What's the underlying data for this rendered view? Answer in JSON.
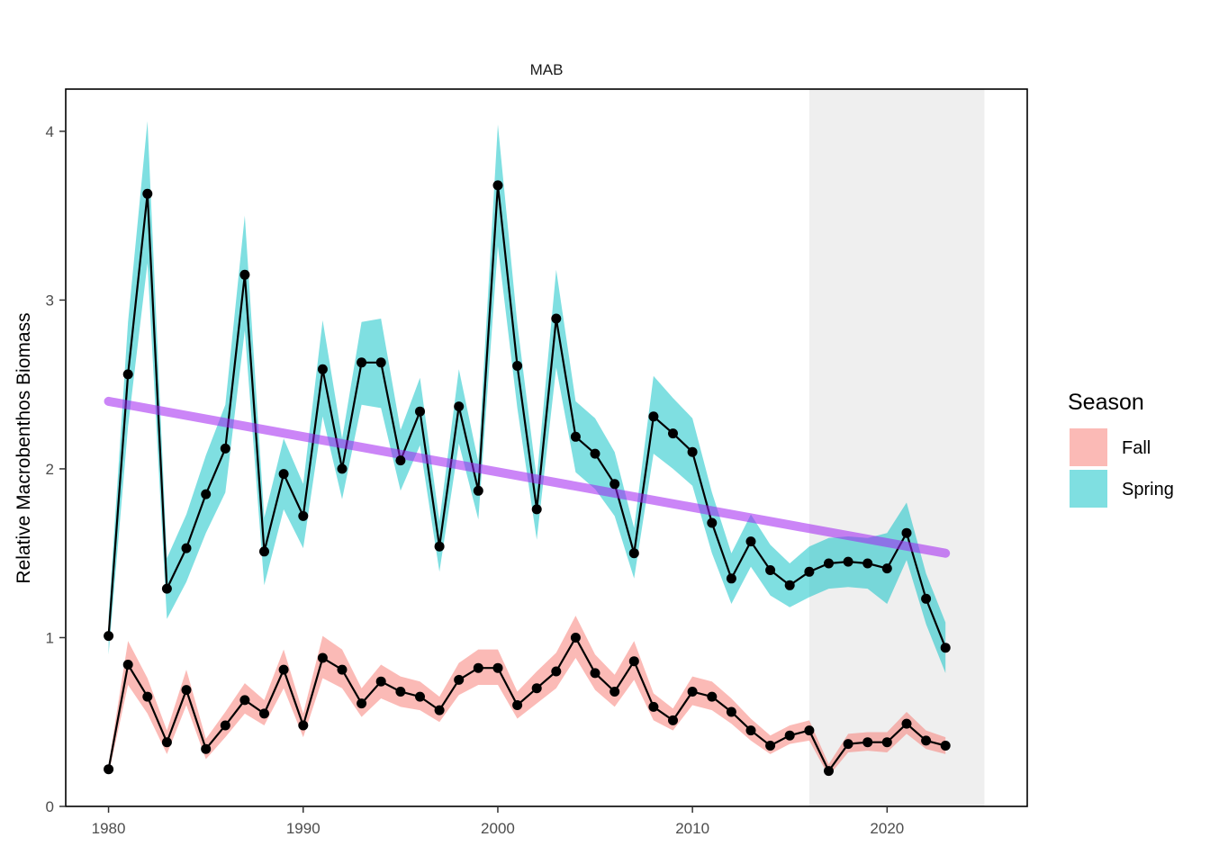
{
  "chart_data": {
    "type": "line",
    "panel_title": "MAB",
    "ylabel": "Relative Macrobenthos Biomass",
    "xlabel": "",
    "xlim": [
      1977.8,
      2027.2
    ],
    "ylim": [
      0,
      4.25
    ],
    "x_ticks": [
      1980,
      1990,
      2000,
      2010,
      2020
    ],
    "y_ticks": [
      0,
      1,
      2,
      3,
      4
    ],
    "highlight_region": {
      "x_start": 2016,
      "x_end": 2025,
      "color": "#efefef"
    },
    "legend": {
      "title": "Season",
      "position": "right",
      "entries": [
        "Fall",
        "Spring"
      ]
    },
    "colors": {
      "Fall": "#f8766d",
      "Spring": "#00bfc4",
      "trend": "#a020f0",
      "line": "#000000"
    },
    "grid": false,
    "x": [
      1980,
      1981,
      1982,
      1983,
      1984,
      1985,
      1986,
      1987,
      1988,
      1989,
      1990,
      1991,
      1992,
      1993,
      1994,
      1995,
      1996,
      1997,
      1998,
      1999,
      2000,
      2001,
      2002,
      2003,
      2004,
      2005,
      2006,
      2007,
      2008,
      2009,
      2010,
      2011,
      2012,
      2013,
      2014,
      2015,
      2016,
      2017,
      2018,
      2019,
      2020,
      2021,
      2022,
      2023
    ],
    "series": [
      {
        "name": "Spring",
        "values": [
          1.01,
          2.56,
          3.63,
          1.29,
          1.53,
          1.85,
          2.12,
          3.15,
          1.51,
          1.97,
          1.72,
          2.59,
          2.0,
          2.63,
          2.63,
          2.05,
          2.34,
          1.54,
          2.37,
          1.87,
          3.68,
          2.61,
          1.76,
          2.89,
          2.19,
          2.09,
          1.91,
          1.5,
          2.31,
          2.21,
          2.1,
          1.68,
          1.35,
          1.57,
          1.4,
          1.31,
          1.39,
          1.44,
          1.45,
          1.44,
          1.41,
          1.62,
          1.23,
          0.94
        ],
        "lower": [
          0.9,
          2.25,
          3.22,
          1.11,
          1.33,
          1.62,
          1.86,
          2.82,
          1.31,
          1.76,
          1.53,
          2.31,
          1.82,
          2.38,
          2.36,
          1.87,
          2.14,
          1.39,
          2.15,
          1.7,
          3.32,
          2.36,
          1.58,
          2.6,
          1.98,
          1.88,
          1.72,
          1.35,
          2.09,
          2.0,
          1.9,
          1.5,
          1.2,
          1.42,
          1.25,
          1.18,
          1.24,
          1.29,
          1.3,
          1.29,
          1.2,
          1.46,
          1.08,
          0.79
        ],
        "upper": [
          1.12,
          2.87,
          4.06,
          1.47,
          1.73,
          2.08,
          2.38,
          3.5,
          1.71,
          2.18,
          1.91,
          2.88,
          2.18,
          2.87,
          2.89,
          2.23,
          2.54,
          1.69,
          2.59,
          2.04,
          4.04,
          2.86,
          1.94,
          3.18,
          2.4,
          2.3,
          2.1,
          1.65,
          2.55,
          2.42,
          2.3,
          1.86,
          1.5,
          1.73,
          1.55,
          1.44,
          1.54,
          1.59,
          1.6,
          1.59,
          1.62,
          1.8,
          1.38,
          1.09
        ]
      },
      {
        "name": "Fall",
        "values": [
          0.22,
          0.84,
          0.65,
          0.38,
          0.69,
          0.34,
          0.48,
          0.63,
          0.55,
          0.81,
          0.48,
          0.88,
          0.81,
          0.61,
          0.74,
          0.68,
          0.65,
          0.57,
          0.75,
          0.82,
          0.82,
          0.6,
          0.7,
          0.8,
          1.0,
          0.79,
          0.68,
          0.86,
          0.59,
          0.51,
          0.68,
          0.65,
          0.56,
          0.45,
          0.36,
          0.42,
          0.45,
          0.21,
          0.37,
          0.38,
          0.38,
          0.49,
          0.39,
          0.36
        ],
        "lower": [
          0.19,
          0.72,
          0.55,
          0.31,
          0.6,
          0.28,
          0.41,
          0.55,
          0.48,
          0.7,
          0.41,
          0.76,
          0.7,
          0.53,
          0.64,
          0.59,
          0.57,
          0.5,
          0.66,
          0.72,
          0.72,
          0.52,
          0.61,
          0.7,
          0.88,
          0.69,
          0.59,
          0.75,
          0.51,
          0.45,
          0.6,
          0.57,
          0.49,
          0.39,
          0.31,
          0.37,
          0.39,
          0.18,
          0.32,
          0.33,
          0.32,
          0.43,
          0.34,
          0.31
        ],
        "upper": [
          0.25,
          0.98,
          0.76,
          0.45,
          0.81,
          0.4,
          0.56,
          0.73,
          0.63,
          0.93,
          0.55,
          1.01,
          0.93,
          0.7,
          0.84,
          0.77,
          0.74,
          0.65,
          0.85,
          0.93,
          0.93,
          0.68,
          0.8,
          0.91,
          1.13,
          0.9,
          0.78,
          0.98,
          0.67,
          0.58,
          0.77,
          0.74,
          0.64,
          0.52,
          0.42,
          0.48,
          0.51,
          0.25,
          0.43,
          0.44,
          0.44,
          0.56,
          0.45,
          0.41
        ]
      }
    ],
    "trend": {
      "name": "Spring trend",
      "x": [
        1980,
        2023
      ],
      "y": [
        2.4,
        1.5
      ]
    }
  }
}
